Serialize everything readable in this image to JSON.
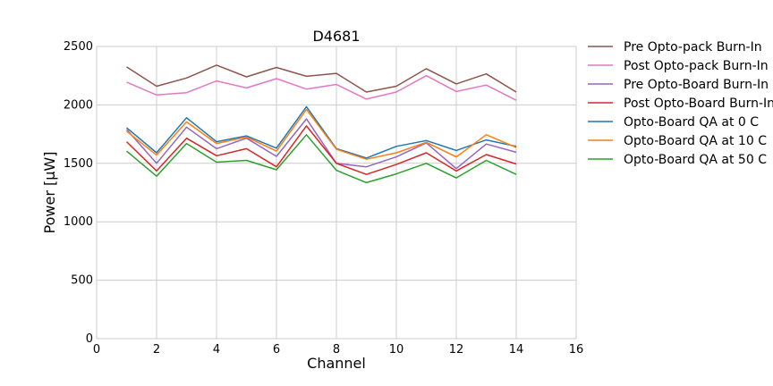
{
  "chart_data": {
    "type": "line",
    "title": "D4681",
    "xlabel": "Channel",
    "ylabel": "Power [μW]",
    "xlim": [
      0,
      16
    ],
    "ylim": [
      0,
      2500
    ],
    "xticks": [
      0,
      2,
      4,
      6,
      8,
      10,
      12,
      14,
      16
    ],
    "yticks": [
      0,
      500,
      1000,
      1500,
      2000,
      2500
    ],
    "grid": true,
    "legend_position": "outside-right",
    "x": [
      1,
      2,
      3,
      4,
      5,
      6,
      7,
      8,
      9,
      10,
      11,
      12,
      13,
      14
    ],
    "series": [
      {
        "name": "Pre Opto-pack Burn-In",
        "color": "#8c564b",
        "values": [
          2325,
          2160,
          2230,
          2340,
          2240,
          2320,
          2245,
          2270,
          2110,
          2160,
          2310,
          2180,
          2265,
          2110
        ]
      },
      {
        "name": "Post Opto-pack Burn-In",
        "color": "#e377c2",
        "values": [
          2195,
          2085,
          2105,
          2205,
          2145,
          2225,
          2135,
          2175,
          2050,
          2110,
          2250,
          2115,
          2170,
          2040
        ]
      },
      {
        "name": "Pre Opto-Board Burn-In",
        "color": "#9467bd",
        "values": [
          1790,
          1500,
          1810,
          1625,
          1715,
          1560,
          1880,
          1500,
          1470,
          1555,
          1675,
          1455,
          1665,
          1595
        ]
      },
      {
        "name": "Post Opto-Board Burn-In",
        "color": "#d62728",
        "values": [
          1685,
          1435,
          1715,
          1565,
          1625,
          1470,
          1820,
          1500,
          1405,
          1490,
          1590,
          1435,
          1575,
          1495
        ]
      },
      {
        "name": "Opto-Board QA at 0 C",
        "color": "#1f77b4",
        "values": [
          1805,
          1590,
          1890,
          1685,
          1735,
          1630,
          1985,
          1625,
          1545,
          1645,
          1695,
          1610,
          1700,
          1645
        ]
      },
      {
        "name": "Opto-Board QA at 10 C",
        "color": "#ff7f0e",
        "values": [
          1775,
          1570,
          1855,
          1670,
          1725,
          1605,
          1960,
          1620,
          1535,
          1590,
          1680,
          1555,
          1745,
          1635
        ]
      },
      {
        "name": "Opto-Board QA at 50 C",
        "color": "#2ca02c",
        "values": [
          1605,
          1390,
          1670,
          1510,
          1525,
          1445,
          1745,
          1440,
          1335,
          1410,
          1500,
          1375,
          1525,
          1405
        ]
      }
    ]
  }
}
